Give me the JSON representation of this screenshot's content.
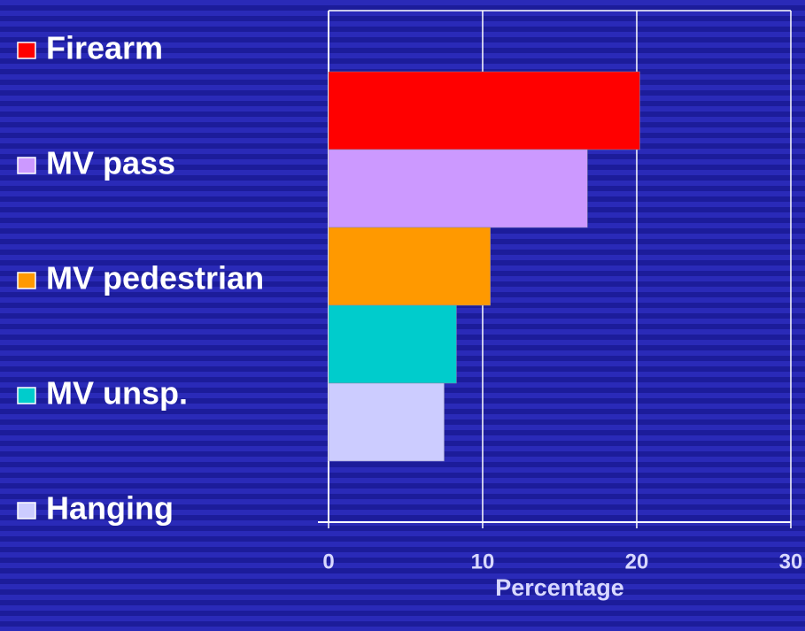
{
  "chart_data": {
    "type": "bar",
    "orientation": "horizontal",
    "categories": [
      "Firearm",
      "MV pass",
      "MV pedestrian",
      "MV unsp.",
      "Hanging"
    ],
    "series": [
      {
        "name": "Firearm",
        "color": "#ff0000",
        "values": [
          20.2,
          null,
          null,
          null,
          null
        ]
      },
      {
        "name": "MV pass",
        "color": "#cc99ff",
        "values": [
          null,
          16.8,
          null,
          null,
          null
        ]
      },
      {
        "name": "MV pedestrian",
        "color": "#ff9900",
        "values": [
          null,
          null,
          10.5,
          null,
          null
        ]
      },
      {
        "name": "MV unsp.",
        "color": "#00cccc",
        "values": [
          null,
          null,
          null,
          8.3,
          null
        ]
      },
      {
        "name": "Hanging",
        "color": "#ccccff",
        "values": [
          null,
          null,
          null,
          null,
          7.5
        ]
      }
    ],
    "xlabel": "Percentage",
    "xlim": [
      0,
      30
    ],
    "xticks": [
      0,
      10,
      20,
      30
    ],
    "grid": true,
    "legend": "left"
  }
}
